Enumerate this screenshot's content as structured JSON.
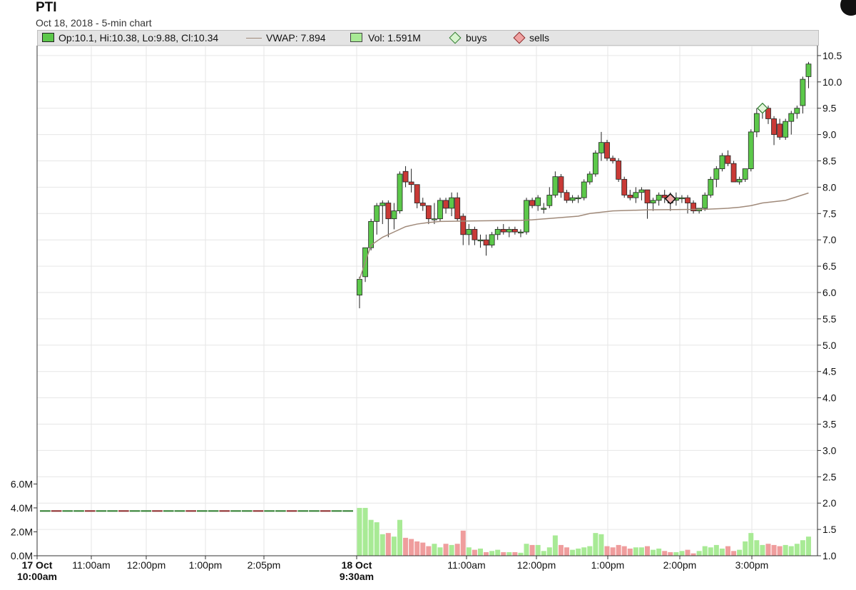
{
  "header": {
    "title": "PTI",
    "subtitle": "Oct 18, 2018 - 5-min chart"
  },
  "legend": {
    "ohlc": "Op:10.1, Hi:10.38, Lo:9.88, Cl:10.34",
    "vwap": "VWAP: 7.894",
    "vol": "Vol: 1.591M",
    "buys": "buys",
    "sells": "sells"
  },
  "colors": {
    "up": "#5cc84a",
    "down": "#c93a36",
    "vol_up": "#a8ea95",
    "vol_down": "#ef9d9d",
    "vwap": "#a08a7a",
    "grid": "#e6e6e6"
  },
  "chart_data": {
    "type": "candlestick",
    "title": "PTI",
    "subtitle": "Oct 18, 2018 - 5-min chart",
    "price_axis": {
      "position": "right",
      "ylim": [
        1.0,
        10.6
      ],
      "ticks": [
        "10.5",
        "10.0",
        "9.5",
        "9.0",
        "8.5",
        "8.0",
        "7.5",
        "7.0",
        "6.5",
        "6.0",
        "5.5",
        "5.0",
        "4.5",
        "4.0",
        "3.5",
        "3.0",
        "2.5",
        "2.0",
        "1.5",
        "1.0"
      ]
    },
    "volume_axis": {
      "position": "left",
      "ylim": [
        0,
        6000000
      ],
      "ticks": [
        "6.0M",
        "4.0M",
        "2.0M",
        "0.0M"
      ]
    },
    "x_ticks": [
      {
        "l1": "17 Oct",
        "l2": "10:00am",
        "bold": true
      },
      {
        "l1": "11:00am",
        "l2": "",
        "bold": false
      },
      {
        "l1": "12:00pm",
        "l2": "",
        "bold": false
      },
      {
        "l1": "1:00pm",
        "l2": "",
        "bold": false
      },
      {
        "l1": "2:05pm",
        "l2": "",
        "bold": false
      },
      {
        "l1": "18 Oct",
        "l2": "9:30am",
        "bold": true
      },
      {
        "l1": "11:00am",
        "l2": "",
        "bold": false
      },
      {
        "l1": "12:00pm",
        "l2": "",
        "bold": false
      },
      {
        "l1": "1:00pm",
        "l2": "",
        "bold": false
      },
      {
        "l1": "2:00pm",
        "l2": "",
        "bold": false
      },
      {
        "l1": "3:00pm",
        "l2": "",
        "bold": false
      }
    ],
    "oct18_candles": [
      [
        5.95,
        6.3,
        5.7,
        6.25
      ],
      [
        6.3,
        6.85,
        6.2,
        6.85
      ],
      [
        6.85,
        7.4,
        6.8,
        7.35
      ],
      [
        7.35,
        7.7,
        7.1,
        7.65
      ],
      [
        7.65,
        7.75,
        7.3,
        7.7
      ],
      [
        7.7,
        7.75,
        7.05,
        7.4
      ],
      [
        7.4,
        7.7,
        7.2,
        7.55
      ],
      [
        7.55,
        8.3,
        7.5,
        8.25
      ],
      [
        8.3,
        8.4,
        8.0,
        8.1
      ],
      [
        8.1,
        8.35,
        7.9,
        8.05
      ],
      [
        8.05,
        8.0,
        7.6,
        7.7
      ],
      [
        7.7,
        7.8,
        7.55,
        7.65
      ],
      [
        7.65,
        7.6,
        7.3,
        7.4
      ],
      [
        7.4,
        7.7,
        7.3,
        7.4
      ],
      [
        7.4,
        7.8,
        7.35,
        7.75
      ],
      [
        7.75,
        7.8,
        7.5,
        7.6
      ],
      [
        7.6,
        7.9,
        7.45,
        7.8
      ],
      [
        7.8,
        7.9,
        7.35,
        7.4
      ],
      [
        7.45,
        7.5,
        6.9,
        7.1
      ],
      [
        7.1,
        7.3,
        6.9,
        7.2
      ],
      [
        7.2,
        7.25,
        6.9,
        7.0
      ],
      [
        7.0,
        7.1,
        6.85,
        7.0
      ],
      [
        7.0,
        7.1,
        6.7,
        6.9
      ],
      [
        6.9,
        7.15,
        6.85,
        7.1
      ],
      [
        7.1,
        7.25,
        7.0,
        7.2
      ],
      [
        7.2,
        7.3,
        7.1,
        7.15
      ],
      [
        7.15,
        7.25,
        7.05,
        7.2
      ],
      [
        7.2,
        7.25,
        7.1,
        7.15
      ],
      [
        7.15,
        7.2,
        7.05,
        7.15
      ],
      [
        7.15,
        7.8,
        7.1,
        7.75
      ],
      [
        7.75,
        7.8,
        7.6,
        7.65
      ],
      [
        7.65,
        7.85,
        7.55,
        7.8
      ],
      [
        7.6,
        7.7,
        7.5,
        7.6
      ],
      [
        7.65,
        8.0,
        7.6,
        7.85
      ],
      [
        7.85,
        8.3,
        7.8,
        8.2
      ],
      [
        8.2,
        8.25,
        7.8,
        7.9
      ],
      [
        7.9,
        7.95,
        7.7,
        7.75
      ],
      [
        7.75,
        7.85,
        7.7,
        7.8
      ],
      [
        7.8,
        7.85,
        7.7,
        7.8
      ],
      [
        7.8,
        8.15,
        7.75,
        8.1
      ],
      [
        8.1,
        8.3,
        8.05,
        8.25
      ],
      [
        8.25,
        8.7,
        8.2,
        8.65
      ],
      [
        8.65,
        9.05,
        8.5,
        8.85
      ],
      [
        8.85,
        8.9,
        8.5,
        8.55
      ],
      [
        8.55,
        8.6,
        8.45,
        8.5
      ],
      [
        8.5,
        8.55,
        8.1,
        8.15
      ],
      [
        8.15,
        8.2,
        7.8,
        7.85
      ],
      [
        7.85,
        7.95,
        7.75,
        7.8
      ],
      [
        7.8,
        8.0,
        7.7,
        7.9
      ],
      [
        7.9,
        8.0,
        7.75,
        7.95
      ],
      [
        7.95,
        7.95,
        7.4,
        7.7
      ],
      [
        7.7,
        7.8,
        7.55,
        7.75
      ],
      [
        7.75,
        7.9,
        7.65,
        7.85
      ],
      [
        7.85,
        7.95,
        7.7,
        7.8
      ],
      [
        7.8,
        7.9,
        7.55,
        7.7
      ],
      [
        7.75,
        7.9,
        7.65,
        7.8
      ],
      [
        7.8,
        7.85,
        7.7,
        7.8
      ],
      [
        7.8,
        7.85,
        7.5,
        7.7
      ],
      [
        7.7,
        7.75,
        7.5,
        7.55
      ],
      [
        7.55,
        7.6,
        7.5,
        7.6
      ],
      [
        7.6,
        7.9,
        7.55,
        7.85
      ],
      [
        7.85,
        8.2,
        7.8,
        8.15
      ],
      [
        8.15,
        8.4,
        8.0,
        8.35
      ],
      [
        8.35,
        8.65,
        8.3,
        8.6
      ],
      [
        8.6,
        8.7,
        8.4,
        8.45
      ],
      [
        8.45,
        8.5,
        8.1,
        8.1
      ],
      [
        8.1,
        8.2,
        8.05,
        8.15
      ],
      [
        8.15,
        8.35,
        8.1,
        8.35
      ],
      [
        8.35,
        9.1,
        8.3,
        9.05
      ],
      [
        9.05,
        9.5,
        8.95,
        9.4
      ],
      [
        9.45,
        9.5,
        9.3,
        9.5
      ],
      [
        9.5,
        9.55,
        9.2,
        9.3
      ],
      [
        9.3,
        9.35,
        8.8,
        9.0
      ],
      [
        9.2,
        9.3,
        8.9,
        8.95
      ],
      [
        8.95,
        9.3,
        8.9,
        9.25
      ],
      [
        9.25,
        9.45,
        9.0,
        9.4
      ],
      [
        9.4,
        9.55,
        9.3,
        9.5
      ],
      [
        9.55,
        10.1,
        9.4,
        10.05
      ],
      [
        10.1,
        10.38,
        9.88,
        10.34
      ]
    ],
    "oct17_price_level": 1.85,
    "oct17_volume_bars": 28,
    "oct18_volume": [
      4000000,
      4000000,
      3000000,
      2800000,
      1800000,
      1900000,
      1600000,
      3000000,
      1500000,
      1400000,
      1200000,
      1100000,
      800000,
      1000000,
      700000,
      1000000,
      900000,
      1000000,
      2100000,
      700000,
      500000,
      600000,
      300000,
      400000,
      500000,
      300000,
      300000,
      300000,
      250000,
      1000000,
      900000,
      900000,
      400000,
      700000,
      1700000,
      900000,
      700000,
      500000,
      600000,
      700000,
      800000,
      1900000,
      1800000,
      800000,
      700000,
      900000,
      800000,
      600000,
      700000,
      700000,
      800000,
      500000,
      600000,
      400000,
      300000,
      300000,
      400000,
      500000,
      200000,
      400000,
      800000,
      700000,
      900000,
      600000,
      800000,
      400000,
      500000,
      1200000,
      1900000,
      1300000,
      900000,
      1000000,
      900000,
      800000,
      900000,
      800000,
      1000000,
      1300000,
      1600000
    ],
    "vwap": [
      [
        0,
        6.25
      ],
      [
        2,
        6.9
      ],
      [
        4,
        7.05
      ],
      [
        6,
        7.15
      ],
      [
        8,
        7.25
      ],
      [
        10,
        7.3
      ],
      [
        12,
        7.33
      ],
      [
        14,
        7.35
      ],
      [
        20,
        7.36
      ],
      [
        28,
        7.37
      ],
      [
        30,
        7.38
      ],
      [
        38,
        7.45
      ],
      [
        40,
        7.5
      ],
      [
        44,
        7.55
      ],
      [
        50,
        7.57
      ],
      [
        60,
        7.58
      ],
      [
        64,
        7.6
      ],
      [
        66,
        7.62
      ],
      [
        68,
        7.65
      ],
      [
        70,
        7.7
      ],
      [
        74,
        7.75
      ],
      [
        78,
        7.89
      ]
    ],
    "markers": [
      {
        "type": "buy",
        "bar": 70,
        "price": 9.5
      },
      {
        "type": "sell",
        "bar": 54,
        "price": 7.78
      }
    ]
  }
}
